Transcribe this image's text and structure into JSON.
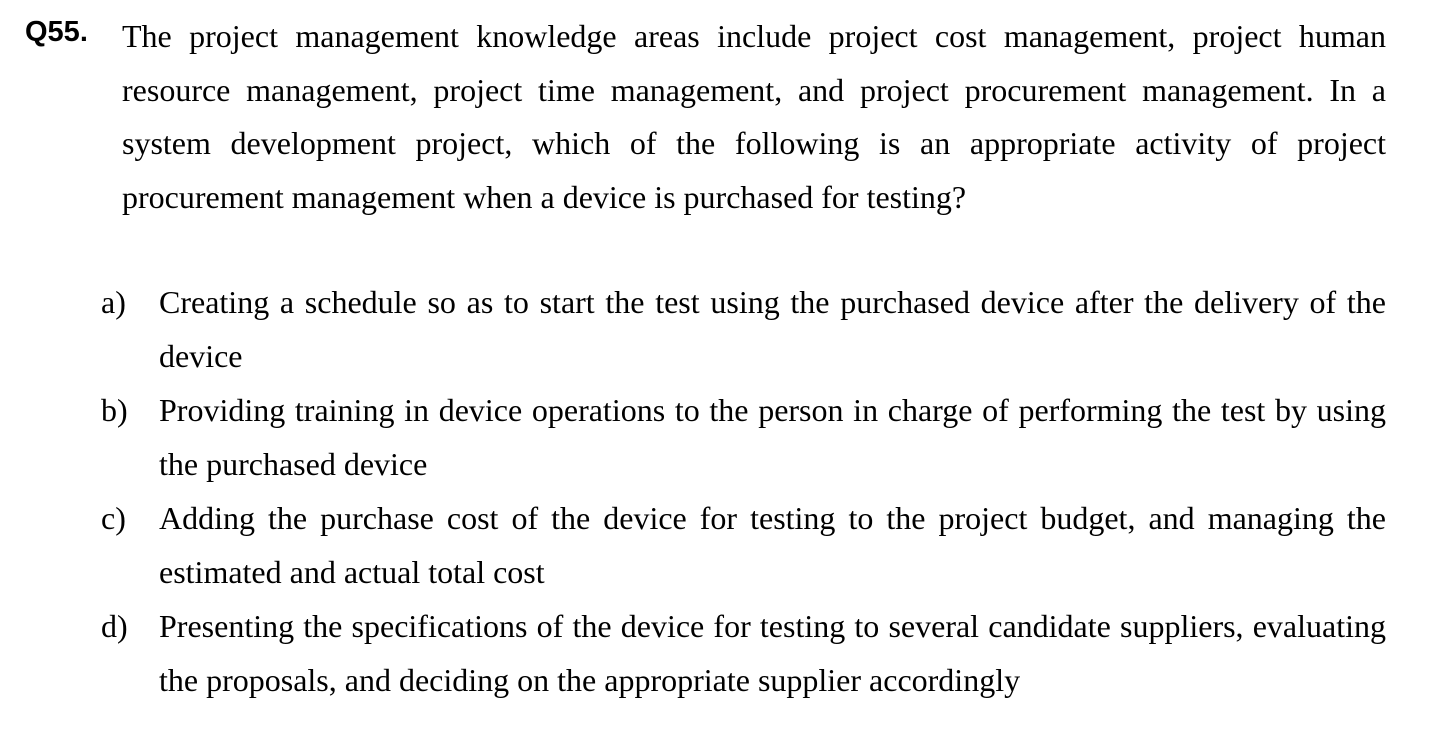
{
  "question": {
    "number": "Q55.",
    "text": "The project management knowledge areas include project cost management, project human resource management, project time management, and project procurement management. In a system development project, which of the following is an appropriate activity of project procurement management when a device is purchased for testing?"
  },
  "choices": [
    {
      "letter": "a)",
      "text": "Creating a schedule so as to start the test using the purchased device after the delivery of the device"
    },
    {
      "letter": "b)",
      "text": "Providing training in device operations to the person in charge of performing the test by using the purchased device"
    },
    {
      "letter": "c)",
      "text": "Adding the purchase cost of the device for testing to the project budget, and managing the estimated and actual total cost"
    },
    {
      "letter": "d)",
      "text": "Presenting the specifications of the device for testing to several candidate suppliers, evaluating the proposals, and deciding on the appropriate supplier accordingly"
    }
  ]
}
